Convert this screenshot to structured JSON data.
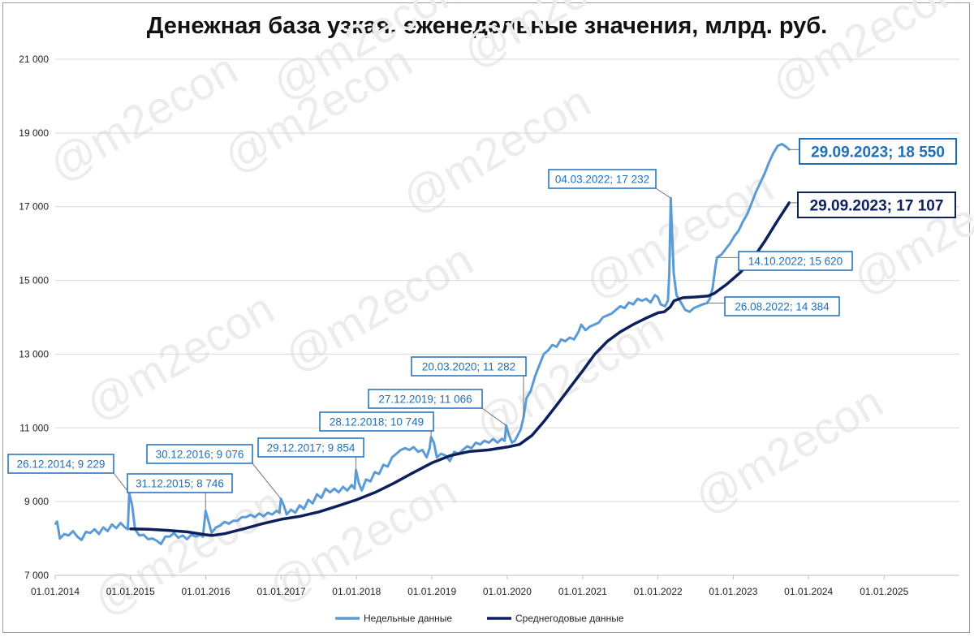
{
  "chart_data": {
    "type": "line",
    "title": "Денежная база узкая, еженедельные значения, млрд. руб.",
    "watermark": "@m2econ",
    "yticks": [
      "21 000",
      "19 000",
      "17 000",
      "15 000",
      "13 000",
      "11 000",
      "9 000",
      "7 000"
    ],
    "xticks": [
      "01.01.2014",
      "01.01.2015",
      "01.01.2016",
      "01.01.2017",
      "01.01.2018",
      "01.01.2019",
      "01.01.2020",
      "01.01.2021",
      "01.01.2022",
      "01.01.2023",
      "01.01.2024",
      "01.01.2025"
    ],
    "ylim": [
      7000,
      21000
    ],
    "xlim": [
      "2014-01-01",
      "2026-01-01"
    ],
    "grid": true,
    "legend_position": "bottom",
    "series": [
      {
        "name": "Недельные данные",
        "color": "#5b9bd5",
        "points": [
          [
            "2014-01-03",
            8400
          ],
          [
            "2014-01-10",
            8460
          ],
          [
            "2014-01-24",
            8000
          ],
          [
            "2014-02-14",
            8120
          ],
          [
            "2014-03-07",
            8080
          ],
          [
            "2014-03-28",
            8200
          ],
          [
            "2014-04-18",
            8050
          ],
          [
            "2014-05-09",
            7960
          ],
          [
            "2014-05-30",
            8180
          ],
          [
            "2014-06-20",
            8150
          ],
          [
            "2014-07-11",
            8250
          ],
          [
            "2014-08-01",
            8120
          ],
          [
            "2014-08-22",
            8300
          ],
          [
            "2014-09-12",
            8200
          ],
          [
            "2014-10-03",
            8380
          ],
          [
            "2014-10-24",
            8280
          ],
          [
            "2014-11-14",
            8420
          ],
          [
            "2014-12-05",
            8300
          ],
          [
            "2014-12-19",
            8250
          ],
          [
            "2014-12-26",
            9229
          ],
          [
            "2015-01-09",
            8900
          ],
          [
            "2015-01-23",
            8250
          ],
          [
            "2015-02-13",
            8080
          ],
          [
            "2015-03-06",
            8100
          ],
          [
            "2015-03-27",
            7980
          ],
          [
            "2015-04-17",
            8000
          ],
          [
            "2015-05-08",
            7940
          ],
          [
            "2015-05-29",
            7850
          ],
          [
            "2015-06-19",
            8050
          ],
          [
            "2015-07-10",
            8050
          ],
          [
            "2015-07-31",
            8150
          ],
          [
            "2015-08-21",
            8020
          ],
          [
            "2015-09-11",
            8080
          ],
          [
            "2015-10-02",
            7980
          ],
          [
            "2015-10-23",
            8100
          ],
          [
            "2015-11-13",
            8050
          ],
          [
            "2015-12-04",
            8100
          ],
          [
            "2015-12-18",
            8050
          ],
          [
            "2015-12-31",
            8746
          ],
          [
            "2016-01-15",
            8450
          ],
          [
            "2016-01-29",
            8150
          ],
          [
            "2016-02-19",
            8300
          ],
          [
            "2016-03-11",
            8350
          ],
          [
            "2016-04-01",
            8450
          ],
          [
            "2016-04-22",
            8400
          ],
          [
            "2016-05-13",
            8480
          ],
          [
            "2016-06-03",
            8480
          ],
          [
            "2016-06-24",
            8580
          ],
          [
            "2016-07-15",
            8580
          ],
          [
            "2016-08-05",
            8640
          ],
          [
            "2016-08-26",
            8580
          ],
          [
            "2016-09-16",
            8680
          ],
          [
            "2016-10-07",
            8600
          ],
          [
            "2016-10-28",
            8700
          ],
          [
            "2016-11-18",
            8650
          ],
          [
            "2016-12-09",
            8750
          ],
          [
            "2016-12-23",
            8700
          ],
          [
            "2016-12-30",
            9076
          ],
          [
            "2017-01-13",
            8900
          ],
          [
            "2017-01-27",
            8650
          ],
          [
            "2017-02-17",
            8780
          ],
          [
            "2017-03-10",
            8700
          ],
          [
            "2017-03-31",
            8900
          ],
          [
            "2017-04-21",
            8800
          ],
          [
            "2017-05-12",
            9050
          ],
          [
            "2017-06-02",
            8950
          ],
          [
            "2017-06-23",
            9200
          ],
          [
            "2017-07-14",
            9100
          ],
          [
            "2017-08-04",
            9350
          ],
          [
            "2017-08-25",
            9250
          ],
          [
            "2017-09-15",
            9350
          ],
          [
            "2017-10-06",
            9250
          ],
          [
            "2017-10-27",
            9400
          ],
          [
            "2017-11-17",
            9300
          ],
          [
            "2017-12-08",
            9450
          ],
          [
            "2017-12-22",
            9350
          ],
          [
            "2017-12-29",
            9854
          ],
          [
            "2018-01-12",
            9500
          ],
          [
            "2018-01-26",
            9300
          ],
          [
            "2018-02-16",
            9600
          ],
          [
            "2018-03-09",
            9550
          ],
          [
            "2018-03-30",
            9800
          ],
          [
            "2018-04-20",
            9750
          ],
          [
            "2018-05-11",
            10000
          ],
          [
            "2018-06-01",
            9950
          ],
          [
            "2018-06-22",
            10200
          ],
          [
            "2018-07-13",
            10300
          ],
          [
            "2018-08-03",
            10400
          ],
          [
            "2018-08-24",
            10450
          ],
          [
            "2018-09-14",
            10400
          ],
          [
            "2018-10-05",
            10480
          ],
          [
            "2018-10-26",
            10350
          ],
          [
            "2018-11-16",
            10400
          ],
          [
            "2018-12-07",
            10200
          ],
          [
            "2018-12-21",
            10450
          ],
          [
            "2018-12-28",
            10749
          ],
          [
            "2019-01-11",
            10600
          ],
          [
            "2019-01-25",
            10200
          ],
          [
            "2019-02-15",
            10300
          ],
          [
            "2019-03-08",
            10250
          ],
          [
            "2019-03-29",
            10100
          ],
          [
            "2019-04-19",
            10350
          ],
          [
            "2019-05-10",
            10300
          ],
          [
            "2019-05-31",
            10400
          ],
          [
            "2019-06-21",
            10500
          ],
          [
            "2019-07-12",
            10450
          ],
          [
            "2019-08-02",
            10600
          ],
          [
            "2019-08-23",
            10550
          ],
          [
            "2019-09-13",
            10650
          ],
          [
            "2019-10-04",
            10600
          ],
          [
            "2019-10-25",
            10700
          ],
          [
            "2019-11-15",
            10600
          ],
          [
            "2019-12-06",
            10700
          ],
          [
            "2019-12-20",
            10650
          ],
          [
            "2019-12-27",
            11066
          ],
          [
            "2020-01-10",
            10800
          ],
          [
            "2020-01-24",
            10600
          ],
          [
            "2020-02-07",
            10650
          ],
          [
            "2020-02-21",
            10800
          ],
          [
            "2020-03-06",
            10950
          ],
          [
            "2020-03-20",
            11282
          ],
          [
            "2020-04-03",
            11800
          ],
          [
            "2020-04-24",
            12000
          ],
          [
            "2020-05-15",
            12400
          ],
          [
            "2020-06-05",
            12700
          ],
          [
            "2020-06-26",
            13000
          ],
          [
            "2020-07-17",
            13100
          ],
          [
            "2020-08-07",
            13250
          ],
          [
            "2020-08-28",
            13200
          ],
          [
            "2020-09-18",
            13400
          ],
          [
            "2020-10-09",
            13350
          ],
          [
            "2020-10-30",
            13450
          ],
          [
            "2020-11-20",
            13400
          ],
          [
            "2020-12-11",
            13600
          ],
          [
            "2020-12-25",
            13800
          ],
          [
            "2021-01-15",
            13650
          ],
          [
            "2021-02-05",
            13750
          ],
          [
            "2021-02-26",
            13800
          ],
          [
            "2021-03-19",
            13850
          ],
          [
            "2021-04-09",
            14000
          ],
          [
            "2021-04-30",
            14050
          ],
          [
            "2021-05-21",
            14100
          ],
          [
            "2021-06-11",
            14200
          ],
          [
            "2021-07-02",
            14300
          ],
          [
            "2021-07-23",
            14250
          ],
          [
            "2021-08-13",
            14400
          ],
          [
            "2021-09-03",
            14350
          ],
          [
            "2021-09-24",
            14500
          ],
          [
            "2021-10-15",
            14450
          ],
          [
            "2021-11-05",
            14500
          ],
          [
            "2021-11-26",
            14400
          ],
          [
            "2021-12-17",
            14600
          ],
          [
            "2021-12-31",
            14550
          ],
          [
            "2022-01-14",
            14350
          ],
          [
            "2022-02-04",
            14300
          ],
          [
            "2022-02-18",
            14450
          ],
          [
            "2022-02-25",
            15200
          ],
          [
            "2022-03-04",
            17232
          ],
          [
            "2022-03-11",
            16200
          ],
          [
            "2022-03-18",
            15200
          ],
          [
            "2022-04-01",
            14600
          ],
          [
            "2022-04-22",
            14400
          ],
          [
            "2022-05-13",
            14200
          ],
          [
            "2022-06-03",
            14150
          ],
          [
            "2022-06-24",
            14250
          ],
          [
            "2022-07-15",
            14300
          ],
          [
            "2022-08-05",
            14350
          ],
          [
            "2022-08-26",
            14384
          ],
          [
            "2022-09-09",
            14500
          ],
          [
            "2022-09-23",
            14800
          ],
          [
            "2022-10-07",
            15400
          ],
          [
            "2022-10-14",
            15620
          ],
          [
            "2022-11-04",
            15700
          ],
          [
            "2022-11-25",
            15850
          ],
          [
            "2022-12-16",
            16000
          ],
          [
            "2023-01-06",
            16200
          ],
          [
            "2023-01-27",
            16350
          ],
          [
            "2023-02-17",
            16600
          ],
          [
            "2023-03-10",
            16800
          ],
          [
            "2023-03-31",
            17100
          ],
          [
            "2023-04-21",
            17400
          ],
          [
            "2023-05-12",
            17650
          ],
          [
            "2023-06-02",
            17900
          ],
          [
            "2023-06-23",
            18200
          ],
          [
            "2023-07-14",
            18450
          ],
          [
            "2023-08-04",
            18650
          ],
          [
            "2023-08-25",
            18700
          ],
          [
            "2023-09-15",
            18620
          ],
          [
            "2023-09-29",
            18550
          ]
        ]
      },
      {
        "name": "Среднегодовые данные",
        "color": "#0d1f5c",
        "points": [
          [
            "2015-01-02",
            8260
          ],
          [
            "2015-04-01",
            8250
          ],
          [
            "2015-07-01",
            8220
          ],
          [
            "2015-10-01",
            8180
          ],
          [
            "2016-01-01",
            8100
          ],
          [
            "2016-02-01",
            8080
          ],
          [
            "2016-04-01",
            8130
          ],
          [
            "2016-07-01",
            8260
          ],
          [
            "2016-10-01",
            8400
          ],
          [
            "2017-01-01",
            8520
          ],
          [
            "2017-04-01",
            8600
          ],
          [
            "2017-07-01",
            8720
          ],
          [
            "2017-10-01",
            8880
          ],
          [
            "2018-01-01",
            9050
          ],
          [
            "2018-04-01",
            9250
          ],
          [
            "2018-07-01",
            9500
          ],
          [
            "2018-10-01",
            9780
          ],
          [
            "2019-01-01",
            10050
          ],
          [
            "2019-04-01",
            10250
          ],
          [
            "2019-07-01",
            10360
          ],
          [
            "2019-10-01",
            10400
          ],
          [
            "2020-01-01",
            10480
          ],
          [
            "2020-03-01",
            10550
          ],
          [
            "2020-05-01",
            10800
          ],
          [
            "2020-07-01",
            11200
          ],
          [
            "2020-09-01",
            11650
          ],
          [
            "2020-11-01",
            12100
          ],
          [
            "2021-01-01",
            12550
          ],
          [
            "2021-03-01",
            13000
          ],
          [
            "2021-05-01",
            13350
          ],
          [
            "2021-07-01",
            13600
          ],
          [
            "2021-09-01",
            13800
          ],
          [
            "2021-11-01",
            13970
          ],
          [
            "2022-01-01",
            14120
          ],
          [
            "2022-02-01",
            14150
          ],
          [
            "2022-03-01",
            14280
          ],
          [
            "2022-03-20",
            14450
          ],
          [
            "2022-05-01",
            14530
          ],
          [
            "2022-07-01",
            14550
          ],
          [
            "2022-09-01",
            14580
          ],
          [
            "2022-10-01",
            14650
          ],
          [
            "2022-12-01",
            14900
          ],
          [
            "2023-02-01",
            15200
          ],
          [
            "2023-04-01",
            15550
          ],
          [
            "2023-06-01",
            16050
          ],
          [
            "2023-08-01",
            16600
          ],
          [
            "2023-09-29",
            17107
          ]
        ]
      }
    ],
    "annotations": [
      {
        "text": "26.12.2014; 9 229",
        "date": "2014-12-26",
        "value": 9229
      },
      {
        "text": "31.12.2015; 8 746",
        "date": "2015-12-31",
        "value": 8746
      },
      {
        "text": "30.12.2016; 9 076",
        "date": "2016-12-30",
        "value": 9076
      },
      {
        "text": "29.12.2017; 9 854",
        "date": "2017-12-29",
        "value": 9854
      },
      {
        "text": "28.12.2018; 10 749",
        "date": "2018-12-28",
        "value": 10749
      },
      {
        "text": "27.12.2019; 11 066",
        "date": "2019-12-27",
        "value": 11066
      },
      {
        "text": "20.03.2020; 11 282",
        "date": "2020-03-20",
        "value": 11282
      },
      {
        "text": "04.03.2022; 17 232",
        "date": "2022-03-04",
        "value": 17232
      },
      {
        "text": "26.08.2022; 14 384",
        "date": "2022-08-26",
        "value": 14384
      },
      {
        "text": "14.10.2022; 15 620",
        "date": "2022-10-14",
        "value": 15620
      },
      {
        "text": "29.09.2023; 18 550",
        "date": "2023-09-29",
        "value": 18550
      },
      {
        "text": "29.09.2023; 17 107",
        "date": "2023-09-29",
        "value": 17107
      }
    ]
  }
}
